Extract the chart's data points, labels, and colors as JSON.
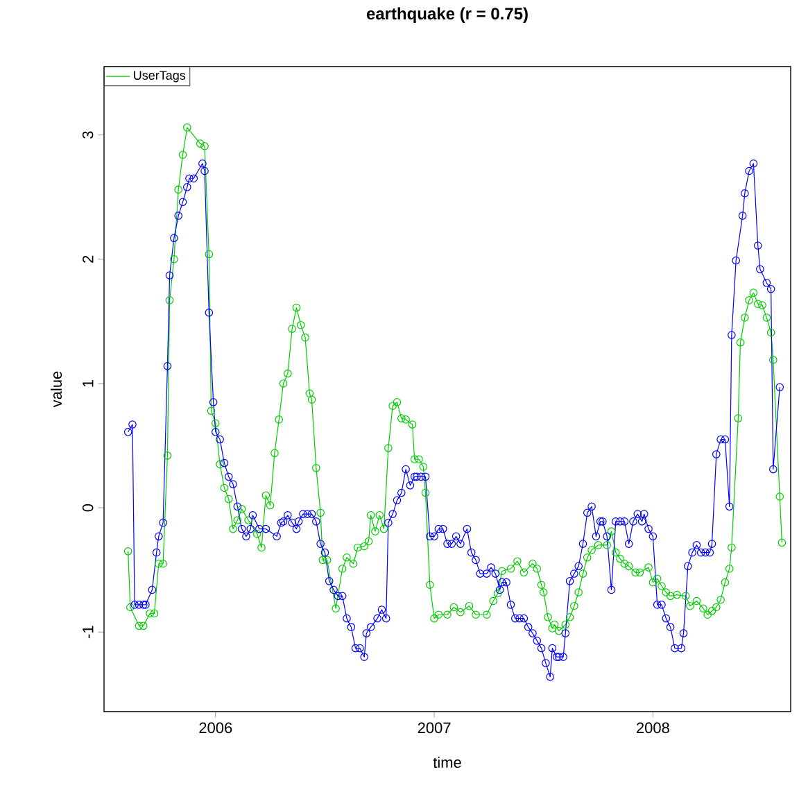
{
  "chart_data": {
    "type": "line",
    "title": "earthquake (r = 0.75)",
    "xlabel": "time",
    "ylabel": "value",
    "xlim": [
      2005.49,
      2008.63
    ],
    "ylim": [
      -1.64,
      3.55
    ],
    "xticks": [
      2006,
      2007,
      2008
    ],
    "yticks": [
      -1,
      0,
      1,
      2,
      3
    ],
    "grid": false,
    "legend": "top left",
    "marker": "circle",
    "line_style": "solid",
    "series": [
      {
        "name": "UserTags",
        "color": "#00cd00",
        "x": [
          2005.6,
          2005.61,
          2005.65,
          2005.67,
          2005.7,
          2005.72,
          2005.74,
          2005.76,
          2005.78,
          2005.79,
          2005.81,
          2005.83,
          2005.85,
          2005.87,
          2005.93,
          2005.95,
          2005.97,
          2005.98,
          2006.0,
          2006.02,
          2006.04,
          2006.06,
          2006.08,
          2006.1,
          2006.12,
          2006.15,
          2006.19,
          2006.21,
          2006.23,
          2006.25,
          2006.27,
          2006.29,
          2006.31,
          2006.33,
          2006.35,
          2006.37,
          2006.39,
          2006.41,
          2006.43,
          2006.44,
          2006.46,
          2006.48,
          2006.49,
          2006.51,
          2006.55,
          2006.58,
          2006.6,
          2006.63,
          2006.65,
          2006.68,
          2006.7,
          2006.71,
          2006.73,
          2006.75,
          2006.77,
          2006.79,
          2006.81,
          2006.83,
          2006.85,
          2006.87,
          2006.9,
          2006.91,
          2006.93,
          2006.95,
          2006.96,
          2006.98,
          2007.0,
          2007.02,
          2007.06,
          2007.09,
          2007.12,
          2007.16,
          2007.19,
          2007.24,
          2007.27,
          2007.29,
          2007.31,
          2007.35,
          2007.38,
          2007.41,
          2007.45,
          2007.47,
          2007.49,
          2007.5,
          2007.52,
          2007.54,
          2007.55,
          2007.57,
          2007.6,
          2007.62,
          2007.64,
          2007.66,
          2007.68,
          2007.7,
          2007.72,
          2007.75,
          2007.79,
          2007.81,
          2007.83,
          2007.85,
          2007.87,
          2007.89,
          2007.92,
          2007.94,
          2007.98,
          2008.0,
          2008.02,
          2008.04,
          2008.06,
          2008.08,
          2008.11,
          2008.15,
          2008.17,
          2008.2,
          2008.23,
          2008.25,
          2008.27,
          2008.29,
          2008.31,
          2008.33,
          2008.35,
          2008.36,
          2008.39,
          2008.4,
          2008.42,
          2008.44,
          2008.46,
          2008.48,
          2008.5,
          2008.52,
          2008.54,
          2008.55,
          2008.58,
          2008.59
        ],
        "values": [
          -0.35,
          -0.8,
          -0.95,
          -0.95,
          -0.85,
          -0.85,
          -0.45,
          -0.45,
          0.42,
          1.67,
          2.0,
          2.56,
          2.84,
          3.06,
          2.93,
          2.91,
          2.04,
          0.78,
          0.68,
          0.35,
          0.16,
          0.07,
          -0.17,
          -0.1,
          -0.01,
          -0.1,
          -0.21,
          -0.32,
          0.1,
          0.02,
          0.44,
          0.71,
          1.0,
          1.08,
          1.44,
          1.61,
          1.47,
          1.37,
          0.92,
          0.87,
          0.32,
          -0.04,
          -0.42,
          -0.42,
          -0.81,
          -0.49,
          -0.4,
          -0.45,
          -0.32,
          -0.31,
          -0.27,
          -0.06,
          -0.19,
          -0.06,
          -0.17,
          0.48,
          0.82,
          0.85,
          0.72,
          0.71,
          0.67,
          0.39,
          0.39,
          0.33,
          0.12,
          -0.62,
          -0.89,
          -0.86,
          -0.86,
          -0.8,
          -0.84,
          -0.79,
          -0.86,
          -0.86,
          -0.75,
          -0.69,
          -0.51,
          -0.49,
          -0.43,
          -0.52,
          -0.45,
          -0.49,
          -0.62,
          -0.68,
          -0.88,
          -0.97,
          -0.94,
          -0.99,
          -0.94,
          -0.88,
          -0.79,
          -0.68,
          -0.53,
          -0.4,
          -0.34,
          -0.3,
          -0.3,
          -0.19,
          -0.36,
          -0.41,
          -0.45,
          -0.47,
          -0.52,
          -0.52,
          -0.48,
          -0.6,
          -0.57,
          -0.63,
          -0.68,
          -0.71,
          -0.7,
          -0.71,
          -0.79,
          -0.75,
          -0.81,
          -0.86,
          -0.83,
          -0.8,
          -0.74,
          -0.6,
          -0.49,
          -0.32,
          0.72,
          1.33,
          1.53,
          1.67,
          1.73,
          1.64,
          1.63,
          1.53,
          1.41,
          1.19,
          0.09,
          -0.28
        ]
      },
      {
        "color": "#0000ff",
        "x": [
          2005.6,
          2005.62,
          2005.63,
          2005.65,
          2005.67,
          2005.68,
          2005.71,
          2005.73,
          2005.74,
          2005.76,
          2005.78,
          2005.79,
          2005.81,
          2005.83,
          2005.85,
          2005.87,
          2005.88,
          2005.9,
          2005.94,
          2005.95,
          2005.97,
          2005.99,
          2006.0,
          2006.02,
          2006.04,
          2006.06,
          2006.08,
          2006.1,
          2006.12,
          2006.14,
          2006.16,
          2006.17,
          2006.2,
          2006.23,
          2006.28,
          2006.3,
          2006.31,
          2006.33,
          2006.35,
          2006.37,
          2006.38,
          2006.4,
          2006.42,
          2006.44,
          2006.46,
          2006.48,
          2006.5,
          2006.52,
          2006.54,
          2006.56,
          2006.58,
          2006.6,
          2006.62,
          2006.64,
          2006.66,
          2006.68,
          2006.69,
          2006.71,
          2006.74,
          2006.76,
          2006.78,
          2006.79,
          2006.81,
          2006.83,
          2006.85,
          2006.87,
          2006.89,
          2006.91,
          2006.92,
          2006.94,
          2006.96,
          2006.98,
          2007.0,
          2007.02,
          2007.04,
          2007.06,
          2007.08,
          2007.1,
          2007.12,
          2007.15,
          2007.17,
          2007.19,
          2007.21,
          2007.24,
          2007.26,
          2007.28,
          2007.3,
          2007.31,
          2007.33,
          2007.35,
          2007.37,
          2007.39,
          2007.41,
          2007.43,
          2007.45,
          2007.47,
          2007.49,
          2007.51,
          2007.53,
          2007.54,
          2007.56,
          2007.57,
          2007.59,
          2007.6,
          2007.62,
          2007.64,
          2007.66,
          2007.68,
          2007.7,
          2007.72,
          2007.74,
          2007.76,
          2007.77,
          2007.79,
          2007.81,
          2007.83,
          2007.85,
          2007.87,
          2007.89,
          2007.91,
          2007.93,
          2007.95,
          2007.96,
          2007.98,
          2008.0,
          2008.02,
          2008.04,
          2008.06,
          2008.08,
          2008.1,
          2008.13,
          2008.14,
          2008.16,
          2008.18,
          2008.2,
          2008.22,
          2008.24,
          2008.26,
          2008.27,
          2008.29,
          2008.31,
          2008.33,
          2008.35,
          2008.36,
          2008.38,
          2008.41,
          2008.42,
          2008.44,
          2008.46,
          2008.48,
          2008.49,
          2008.52,
          2008.54,
          2008.55,
          2008.58
        ],
        "values": [
          0.61,
          0.67,
          -0.78,
          -0.78,
          -0.78,
          -0.78,
          -0.66,
          -0.36,
          -0.23,
          -0.12,
          1.14,
          1.87,
          2.17,
          2.35,
          2.46,
          2.58,
          2.65,
          2.65,
          2.77,
          2.71,
          1.57,
          0.85,
          0.61,
          0.55,
          0.36,
          0.25,
          0.19,
          0.01,
          -0.17,
          -0.23,
          -0.17,
          -0.06,
          -0.17,
          -0.17,
          -0.23,
          -0.12,
          -0.11,
          -0.06,
          -0.12,
          -0.17,
          -0.11,
          -0.05,
          -0.05,
          -0.05,
          -0.11,
          -0.29,
          -0.36,
          -0.59,
          -0.66,
          -0.71,
          -0.71,
          -0.89,
          -0.96,
          -1.13,
          -1.13,
          -1.2,
          -1.01,
          -0.96,
          -0.89,
          -0.82,
          -0.89,
          -0.12,
          -0.05,
          0.06,
          0.12,
          0.31,
          0.18,
          0.25,
          0.25,
          0.25,
          0.25,
          -0.23,
          -0.23,
          -0.17,
          -0.17,
          -0.29,
          -0.29,
          -0.23,
          -0.29,
          -0.17,
          -0.36,
          -0.42,
          -0.53,
          -0.53,
          -0.48,
          -0.53,
          -0.66,
          -0.6,
          -0.6,
          -0.78,
          -0.89,
          -0.89,
          -0.89,
          -0.96,
          -1.01,
          -1.07,
          -1.13,
          -1.25,
          -1.36,
          -1.13,
          -1.2,
          -1.2,
          -1.2,
          -1.01,
          -0.59,
          -0.53,
          -0.47,
          -0.29,
          -0.04,
          0.01,
          -0.23,
          -0.11,
          -0.11,
          -0.23,
          -0.66,
          -0.11,
          -0.11,
          -0.11,
          -0.29,
          -0.11,
          -0.05,
          -0.11,
          -0.05,
          -0.17,
          -0.23,
          -0.78,
          -0.78,
          -0.89,
          -0.96,
          -1.13,
          -1.13,
          -1.01,
          -0.47,
          -0.36,
          -0.3,
          -0.36,
          -0.36,
          -0.36,
          -0.29,
          0.43,
          0.55,
          0.55,
          0.01,
          1.39,
          1.99,
          2.35,
          2.53,
          2.71,
          2.77,
          2.11,
          1.92,
          1.81,
          1.76,
          0.31,
          0.97
        ]
      }
    ]
  }
}
